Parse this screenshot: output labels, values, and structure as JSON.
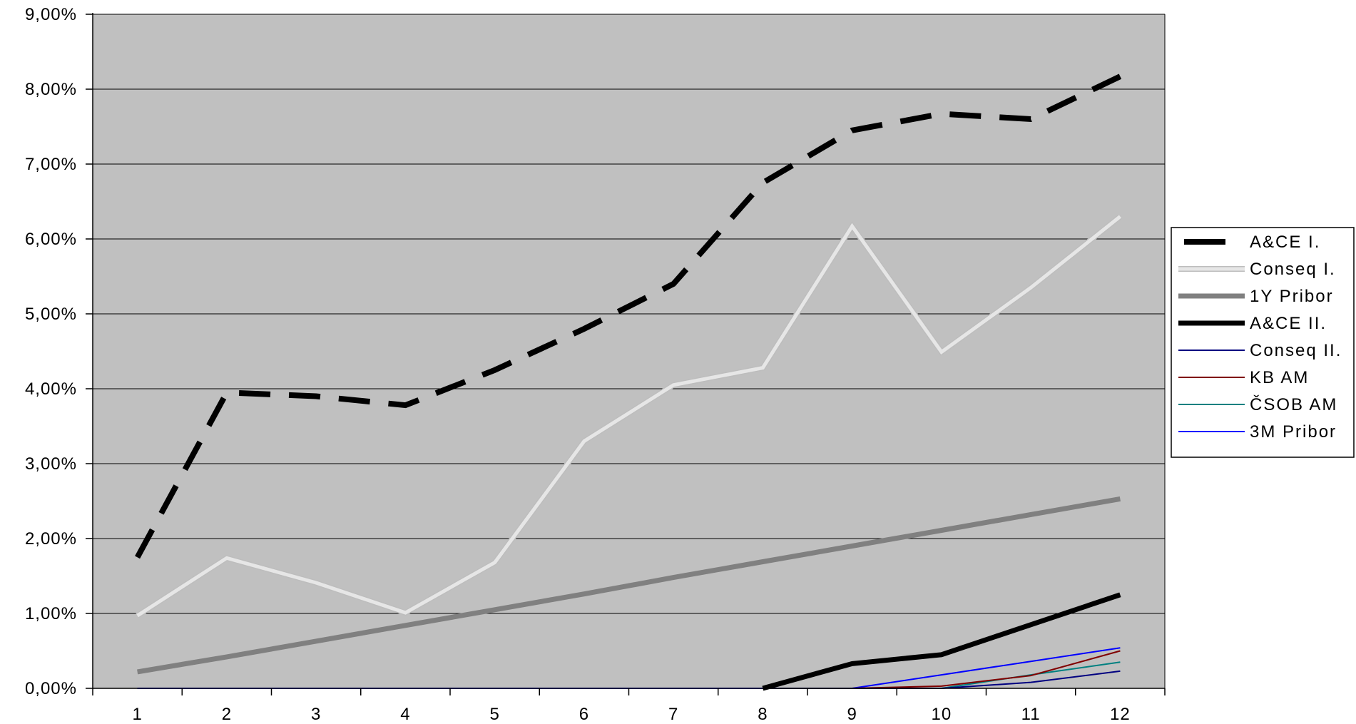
{
  "chart_data": {
    "type": "line",
    "title": "",
    "xlabel": "",
    "ylabel": "",
    "x": [
      "1",
      "2",
      "3",
      "4",
      "5",
      "6",
      "7",
      "8",
      "9",
      "10",
      "11",
      "12"
    ],
    "ylim": [
      0,
      0.09
    ],
    "y_ticks": [
      {
        "value": 0.0,
        "label": "0,00%"
      },
      {
        "value": 0.01,
        "label": "1,00%"
      },
      {
        "value": 0.02,
        "label": "2,00%"
      },
      {
        "value": 0.03,
        "label": "3,00%"
      },
      {
        "value": 0.04,
        "label": "4,00%"
      },
      {
        "value": 0.05,
        "label": "5,00%"
      },
      {
        "value": 0.06,
        "label": "6,00%"
      },
      {
        "value": 0.07,
        "label": "7,00%"
      },
      {
        "value": 0.08,
        "label": "8,00%"
      },
      {
        "value": 0.09,
        "label": "9,00%"
      }
    ],
    "grid": true,
    "plot_background": "#C0C0C0",
    "legend_position": "right",
    "series": [
      {
        "name": "A&CE I.",
        "color": "#000000",
        "style": "dashed-thick",
        "values": [
          0.0175,
          0.0395,
          0.039,
          0.0378,
          0.0425,
          0.048,
          0.054,
          0.0675,
          0.0745,
          0.0767,
          0.076,
          0.0817
        ]
      },
      {
        "name": "Conseq I.",
        "color": "#E6E6E6",
        "style": "light-thick",
        "values": [
          0.0097,
          0.0174,
          0.0141,
          0.0101,
          0.0168,
          0.033,
          0.0405,
          0.0428,
          0.0617,
          0.0449,
          0.0535,
          0.063
        ]
      },
      {
        "name": "1Y Pribor",
        "color": "#808080",
        "style": "solid-thick",
        "values": [
          0.0022,
          0.0042,
          0.0063,
          0.0084,
          0.0105,
          0.0126,
          0.0148,
          0.0169,
          0.019,
          0.0211,
          0.0232,
          0.0253
        ]
      },
      {
        "name": "A&CE II.",
        "color": "#000000",
        "style": "solid-thick",
        "values": [
          null,
          null,
          null,
          null,
          null,
          null,
          null,
          0.0,
          0.0033,
          0.0045,
          0.0085,
          0.0125
        ]
      },
      {
        "name": "Conseq II.",
        "color": "#000080",
        "style": "thin",
        "values": [
          null,
          null,
          null,
          null,
          null,
          null,
          null,
          0.0,
          0.0,
          0.0,
          0.0008,
          0.0023
        ]
      },
      {
        "name": "KB AM",
        "color": "#800000",
        "style": "thin",
        "values": [
          null,
          null,
          null,
          null,
          null,
          null,
          null,
          0.0,
          0.0,
          0.0003,
          0.0017,
          0.005
        ]
      },
      {
        "name": "ČSOB AM",
        "color": "#008080",
        "style": "thin",
        "values": [
          null,
          null,
          null,
          null,
          null,
          null,
          null,
          0.0,
          0.0,
          0.0,
          0.0018,
          0.0035
        ]
      },
      {
        "name": "3M Pribor",
        "color": "#0000FF",
        "style": "thin",
        "values": [
          0.0,
          0.0,
          0.0,
          0.0,
          0.0,
          0.0,
          0.0,
          0.0,
          0.0,
          0.0018,
          0.0036,
          0.0054
        ]
      }
    ]
  }
}
